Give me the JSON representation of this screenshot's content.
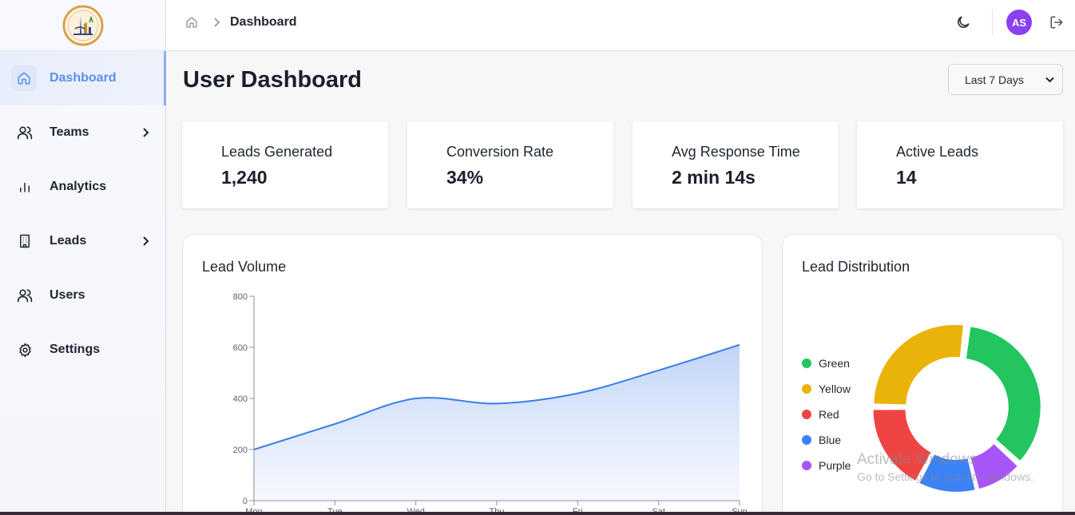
{
  "sidebar": {
    "logo_icon": "city-emblem-logo",
    "items": [
      {
        "label": "Dashboard",
        "icon": "home-icon",
        "active": true,
        "has_submenu": false
      },
      {
        "label": "Teams",
        "icon": "users-icon",
        "active": false,
        "has_submenu": true
      },
      {
        "label": "Analytics",
        "icon": "bar-chart-icon",
        "active": false,
        "has_submenu": false
      },
      {
        "label": "Leads",
        "icon": "building-icon",
        "active": false,
        "has_submenu": true
      },
      {
        "label": "Users",
        "icon": "users-icon",
        "active": false,
        "has_submenu": false
      },
      {
        "label": "Settings",
        "icon": "gear-icon",
        "active": false,
        "has_submenu": false
      }
    ]
  },
  "header": {
    "breadcrumb_current": "Dashboard",
    "avatar_initials": "AS",
    "avatar_color": "#8a3ff0"
  },
  "main": {
    "title": "User Dashboard",
    "date_range": {
      "selected": "Last 7 Days"
    },
    "stats": [
      {
        "label": "Leads Generated",
        "value": "1,240"
      },
      {
        "label": "Conversion Rate",
        "value": "34%"
      },
      {
        "label": "Avg Response Time",
        "value": "2 min 14s"
      },
      {
        "label": "Active Leads",
        "value": "14"
      }
    ],
    "line_panel_title": "Lead Volume",
    "donut_panel_title": "Lead Distribution"
  },
  "chart_data": [
    {
      "type": "area",
      "title": "Lead Volume",
      "categories": [
        "Mon",
        "Tue",
        "Wed",
        "Thu",
        "Fri",
        "Sat",
        "Sun"
      ],
      "series": [
        {
          "values": [
            200,
            300,
            400,
            380,
            420,
            510,
            610
          ],
          "color": "#3b7de8"
        }
      ],
      "ylim": [
        0,
        800
      ],
      "yticks": [
        0,
        200,
        400,
        600,
        800
      ],
      "grid": false
    },
    {
      "type": "pie",
      "title": "Lead Distribution",
      "donut": true,
      "legend_position": "left",
      "slices": [
        {
          "label": "Green",
          "value": 30,
          "color": "#22c55e"
        },
        {
          "label": "Purple",
          "value": 8,
          "color": "#a855f7"
        },
        {
          "label": "Blue",
          "value": 10,
          "color": "#3b82f6"
        },
        {
          "label": "Red",
          "value": 15,
          "color": "#ef4444"
        },
        {
          "label": "Yellow",
          "value": 23,
          "color": "#eab308"
        }
      ],
      "legend": [
        "Green",
        "Yellow",
        "Red",
        "Blue",
        "Purple"
      ]
    }
  ],
  "watermark": {
    "line1": "Activate Windows",
    "line2": "Go to Settings to activate Windows."
  }
}
